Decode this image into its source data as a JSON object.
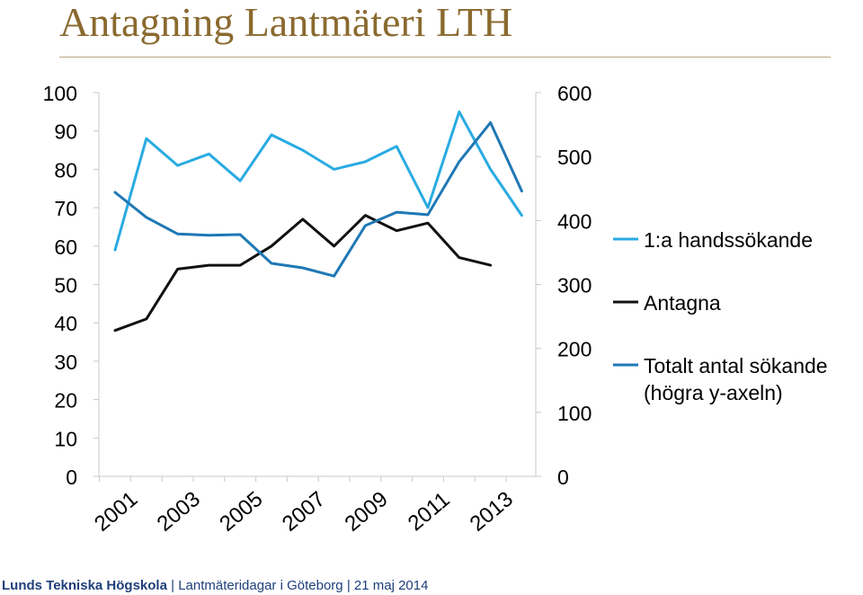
{
  "slide": {
    "title": "Antagning Lantmäteri LTH"
  },
  "footer": {
    "org": "Lunds Tekniska Högskola",
    "sep": "|",
    "event": "Lantmäteridagar i Göteborg",
    "date": "21 maj 2014"
  },
  "chart_data": {
    "type": "line",
    "x": [
      2001,
      2002,
      2003,
      2004,
      2005,
      2006,
      2007,
      2008,
      2009,
      2010,
      2011,
      2012,
      2013,
      2014
    ],
    "x_tick_labels": [
      "2001",
      "2003",
      "2005",
      "2007",
      "2009",
      "2011",
      "2013"
    ],
    "y_left": {
      "range": [
        0,
        100
      ],
      "ticks": [
        "0",
        "10",
        "20",
        "30",
        "40",
        "50",
        "60",
        "70",
        "80",
        "90",
        "100"
      ]
    },
    "y_right": {
      "range": [
        0,
        600
      ],
      "ticks": [
        "0",
        "100",
        "200",
        "300",
        "400",
        "500",
        "600"
      ]
    },
    "grid": false,
    "legend_position": "right",
    "series": [
      {
        "name": "1:a handssökande",
        "axis": "left",
        "color": "#29abe2",
        "values": [
          59,
          88,
          81,
          84,
          77,
          89,
          85,
          80,
          82,
          86,
          70,
          95,
          80,
          68
        ]
      },
      {
        "name": "Antagna",
        "axis": "left",
        "color": "#111111",
        "values": [
          38,
          41,
          54,
          55,
          55,
          60,
          67,
          60,
          68,
          64,
          66,
          57,
          55,
          null
        ]
      },
      {
        "name": "Totalt antal sökande",
        "legend_line2": "(högra y-axeln)",
        "axis": "right",
        "color": "#1f78b4",
        "values": [
          444,
          405,
          379,
          377,
          378,
          333,
          326,
          313,
          392,
          413,
          409,
          492,
          553,
          446
        ]
      }
    ]
  }
}
